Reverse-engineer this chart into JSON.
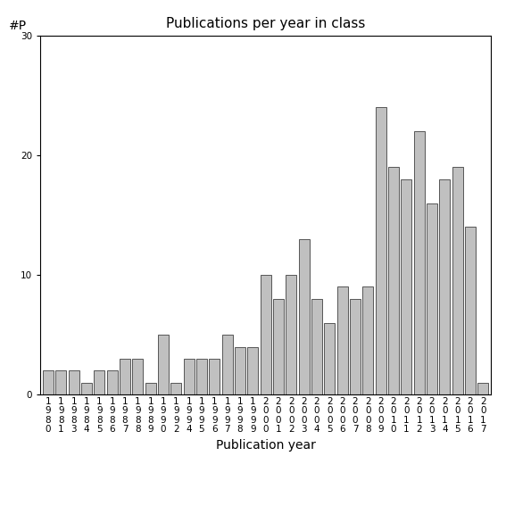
{
  "title": "Publications per year in class",
  "xlabel": "Publication year",
  "ylabel_label": "#P",
  "bar_color": "#c0c0c0",
  "bar_edgecolor": "#404040",
  "ylim": [
    0,
    30
  ],
  "yticks": [
    0,
    10,
    20,
    30
  ],
  "categories": [
    "1980",
    "1981",
    "1983",
    "1984",
    "1985",
    "1986",
    "1987",
    "1988",
    "1989",
    "1990",
    "1992",
    "1994",
    "1995",
    "1996",
    "1997",
    "1998",
    "1999",
    "2000",
    "2001",
    "2002",
    "2003",
    "2004",
    "2005",
    "2006",
    "2007",
    "2008",
    "2009",
    "2010",
    "2011",
    "2012",
    "2013",
    "2014",
    "2015",
    "2016",
    "2017"
  ],
  "values": [
    2,
    2,
    2,
    1,
    2,
    2,
    3,
    3,
    1,
    5,
    1,
    3,
    3,
    3,
    5,
    4,
    4,
    10,
    8,
    10,
    13,
    8,
    6,
    9,
    8,
    9,
    24,
    19,
    18,
    22,
    16,
    18,
    19,
    14,
    1
  ],
  "background_color": "#ffffff",
  "title_fontsize": 11,
  "axis_fontsize": 10,
  "tick_fontsize": 7.5
}
